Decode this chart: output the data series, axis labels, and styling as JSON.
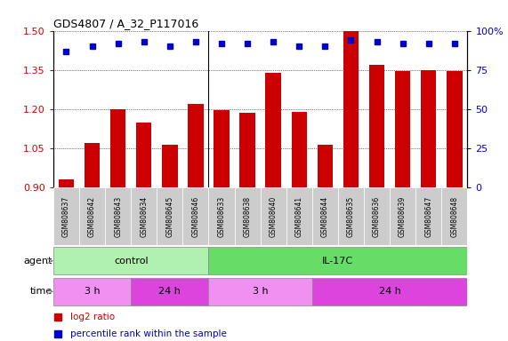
{
  "title": "GDS4807 / A_32_P117016",
  "samples": [
    "GSM808637",
    "GSM808642",
    "GSM808643",
    "GSM808634",
    "GSM808645",
    "GSM808646",
    "GSM808633",
    "GSM808638",
    "GSM808640",
    "GSM808641",
    "GSM808644",
    "GSM808635",
    "GSM808636",
    "GSM808639",
    "GSM808647",
    "GSM808648"
  ],
  "log2_ratio": [
    0.93,
    1.07,
    1.2,
    1.15,
    1.065,
    1.22,
    1.195,
    1.185,
    1.34,
    1.19,
    1.065,
    1.5,
    1.37,
    1.345,
    1.35,
    1.345
  ],
  "percentile": [
    87,
    90,
    92,
    93,
    90,
    93,
    92,
    92,
    93,
    90,
    90,
    94,
    93,
    92,
    92,
    92
  ],
  "bar_color": "#cc0000",
  "dot_color": "#0000cc",
  "ylim_left": [
    0.9,
    1.5
  ],
  "ylim_right": [
    0,
    100
  ],
  "yticks_left": [
    0.9,
    1.05,
    1.2,
    1.35,
    1.5
  ],
  "yticks_right": [
    0,
    25,
    50,
    75,
    100
  ],
  "background_color": "#ffffff",
  "agent_control_color": "#b0f0b0",
  "agent_il17c_color": "#66dd66",
  "time_3h_color": "#f090f0",
  "time_24h_color": "#dd44dd",
  "control_count": 6,
  "time_3h_control": 3,
  "time_3h_il17c": 4,
  "time_24h_il17c": 6,
  "legend_red": "log2 ratio",
  "legend_blue": "percentile rank within the sample",
  "label_agent": "agent",
  "label_time": "time",
  "label_control": "control",
  "label_il17c": "IL-17C",
  "label_3h": "3 h",
  "label_24h": "24 h"
}
